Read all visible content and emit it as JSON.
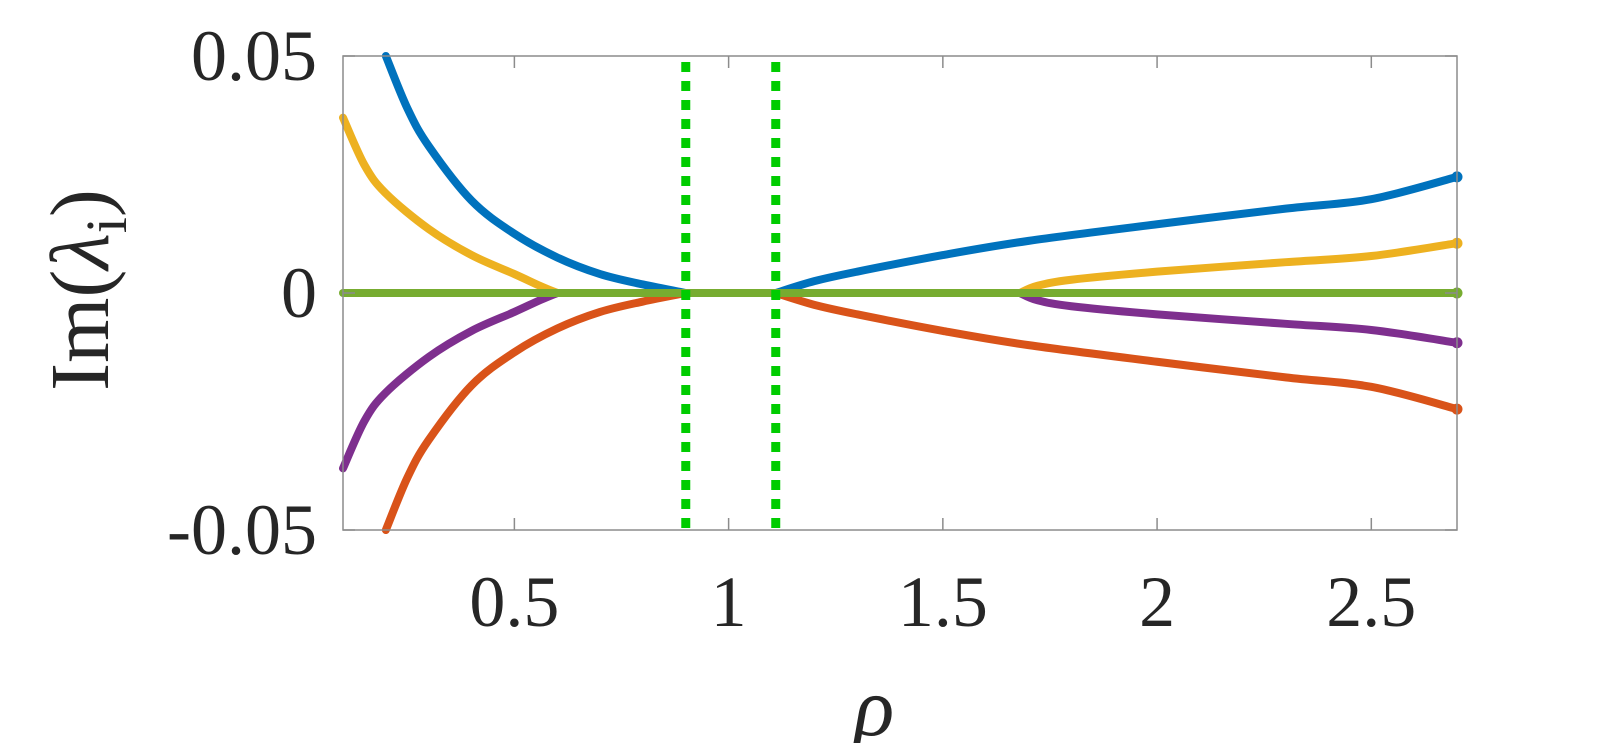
{
  "chart_data": {
    "type": "line",
    "title": "",
    "xlabel": "ρ",
    "ylabel": "Im(λi)",
    "ylabel_parts": {
      "prefix": "Im(",
      "symbol": "λ",
      "subscript": "i",
      "suffix": ")"
    },
    "xlim": [
      0.1,
      2.7
    ],
    "ylim": [
      -0.05,
      0.05
    ],
    "x_ticks": [
      0.5,
      1,
      1.5,
      2,
      2.5
    ],
    "x_tick_labels": [
      "0.5",
      "1",
      "1.5",
      "2",
      "2.5"
    ],
    "y_ticks": [
      -0.05,
      0,
      0.05
    ],
    "y_tick_labels": [
      "-0.05",
      "0",
      "0.05"
    ],
    "grid": false,
    "vertical_reference_lines": {
      "x": [
        0.9,
        1.11
      ],
      "color": "#00cc00",
      "style": "dotted"
    },
    "series": [
      {
        "color": "#0072bd",
        "points": [
          [
            0.2,
            0.05
          ],
          [
            0.25,
            0.039
          ],
          [
            0.3,
            0.031
          ],
          [
            0.4,
            0.0195
          ],
          [
            0.5,
            0.0125
          ],
          [
            0.6,
            0.0075
          ],
          [
            0.7,
            0.004
          ],
          [
            0.8,
            0.0018
          ],
          [
            0.9,
            0.0
          ]
        ]
      },
      {
        "color": "#0072bd",
        "points": [
          [
            1.11,
            0.0
          ],
          [
            1.2,
            0.0025
          ],
          [
            1.3,
            0.0045
          ],
          [
            1.5,
            0.008
          ],
          [
            1.7,
            0.011
          ],
          [
            2.0,
            0.0145
          ],
          [
            2.3,
            0.0178
          ],
          [
            2.5,
            0.0198
          ],
          [
            2.7,
            0.0245
          ]
        ]
      },
      {
        "color": "#d95319",
        "points": [
          [
            0.2,
            -0.05
          ],
          [
            0.25,
            -0.039
          ],
          [
            0.3,
            -0.031
          ],
          [
            0.4,
            -0.0195
          ],
          [
            0.5,
            -0.0125
          ],
          [
            0.6,
            -0.0075
          ],
          [
            0.7,
            -0.004
          ],
          [
            0.8,
            -0.0018
          ],
          [
            0.9,
            0.0
          ]
        ]
      },
      {
        "color": "#d95319",
        "points": [
          [
            1.11,
            0.0
          ],
          [
            1.2,
            -0.0025
          ],
          [
            1.3,
            -0.0045
          ],
          [
            1.5,
            -0.008
          ],
          [
            1.7,
            -0.011
          ],
          [
            2.0,
            -0.0145
          ],
          [
            2.3,
            -0.0178
          ],
          [
            2.5,
            -0.0198
          ],
          [
            2.7,
            -0.0245
          ]
        ]
      },
      {
        "color": "#edb120",
        "points": [
          [
            0.1,
            0.037
          ],
          [
            0.15,
            0.027
          ],
          [
            0.2,
            0.021
          ],
          [
            0.3,
            0.0135
          ],
          [
            0.4,
            0.008
          ],
          [
            0.5,
            0.004
          ],
          [
            0.56,
            0.0015
          ],
          [
            0.6,
            0.0
          ]
        ]
      },
      {
        "color": "#edb120",
        "points": [
          [
            1.68,
            0.0
          ],
          [
            1.72,
            0.0015
          ],
          [
            1.8,
            0.0028
          ],
          [
            2.0,
            0.0045
          ],
          [
            2.3,
            0.0065
          ],
          [
            2.5,
            0.0078
          ],
          [
            2.7,
            0.0105
          ]
        ]
      },
      {
        "color": "#7e2f8e",
        "points": [
          [
            0.1,
            -0.037
          ],
          [
            0.15,
            -0.027
          ],
          [
            0.2,
            -0.021
          ],
          [
            0.3,
            -0.0135
          ],
          [
            0.4,
            -0.008
          ],
          [
            0.5,
            -0.004
          ],
          [
            0.56,
            -0.0015
          ],
          [
            0.6,
            0.0
          ]
        ]
      },
      {
        "color": "#7e2f8e",
        "points": [
          [
            1.68,
            0.0
          ],
          [
            1.72,
            -0.0015
          ],
          [
            1.8,
            -0.0028
          ],
          [
            2.0,
            -0.0045
          ],
          [
            2.3,
            -0.0065
          ],
          [
            2.5,
            -0.0078
          ],
          [
            2.7,
            -0.0105
          ]
        ]
      },
      {
        "color": "#77ac30",
        "points": [
          [
            0.1,
            0.0
          ],
          [
            2.7,
            0.0
          ]
        ]
      }
    ]
  }
}
